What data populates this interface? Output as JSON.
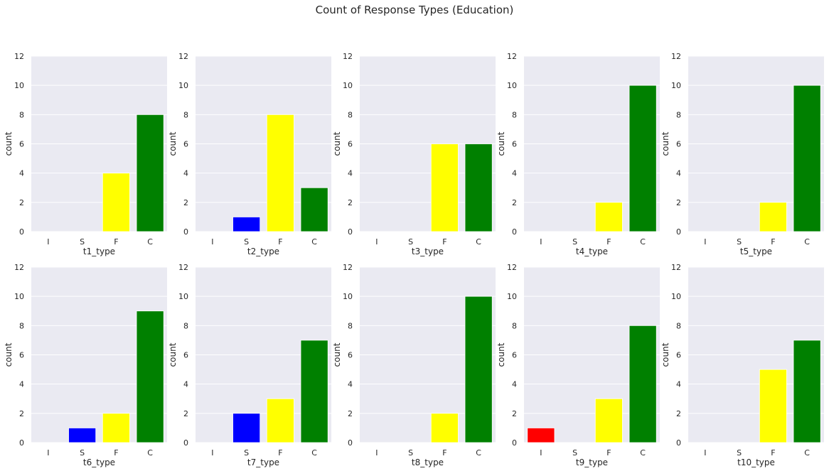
{
  "suptitle": "Count of Response Types (Education)",
  "colors": {
    "I": "#ff0000",
    "S": "#0000ff",
    "F": "#ffff00",
    "C": "#008000",
    "background": "#eaeaf2",
    "grid": "#ffffff",
    "text": "#262626"
  },
  "chart_data": [
    {
      "type": "bar",
      "categories": [
        "I",
        "S",
        "F",
        "C"
      ],
      "values": [
        0,
        0,
        4,
        8
      ],
      "xlabel": "t1_type",
      "ylabel": "count",
      "ylim": [
        0,
        12
      ],
      "yticks": [
        0,
        2,
        4,
        6,
        8,
        10,
        12
      ],
      "grid": true
    },
    {
      "type": "bar",
      "categories": [
        "I",
        "S",
        "F",
        "C"
      ],
      "values": [
        0,
        1,
        8,
        3
      ],
      "xlabel": "t2_type",
      "ylabel": "count",
      "ylim": [
        0,
        12
      ],
      "yticks": [
        0,
        2,
        4,
        6,
        8,
        10,
        12
      ],
      "grid": true
    },
    {
      "type": "bar",
      "categories": [
        "I",
        "S",
        "F",
        "C"
      ],
      "values": [
        0,
        0,
        6,
        6
      ],
      "xlabel": "t3_type",
      "ylabel": "count",
      "ylim": [
        0,
        12
      ],
      "yticks": [
        0,
        2,
        4,
        6,
        8,
        10,
        12
      ],
      "grid": true
    },
    {
      "type": "bar",
      "categories": [
        "I",
        "S",
        "F",
        "C"
      ],
      "values": [
        0,
        0,
        2,
        10
      ],
      "xlabel": "t4_type",
      "ylabel": "count",
      "ylim": [
        0,
        12
      ],
      "yticks": [
        0,
        2,
        4,
        6,
        8,
        10,
        12
      ],
      "grid": true
    },
    {
      "type": "bar",
      "categories": [
        "I",
        "S",
        "F",
        "C"
      ],
      "values": [
        0,
        0,
        2,
        10
      ],
      "xlabel": "t5_type",
      "ylabel": "count",
      "ylim": [
        0,
        12
      ],
      "yticks": [
        0,
        2,
        4,
        6,
        8,
        10,
        12
      ],
      "grid": true
    },
    {
      "type": "bar",
      "categories": [
        "I",
        "S",
        "F",
        "C"
      ],
      "values": [
        0,
        1,
        2,
        9
      ],
      "xlabel": "t6_type",
      "ylabel": "count",
      "ylim": [
        0,
        12
      ],
      "yticks": [
        0,
        2,
        4,
        6,
        8,
        10,
        12
      ],
      "grid": true
    },
    {
      "type": "bar",
      "categories": [
        "I",
        "S",
        "F",
        "C"
      ],
      "values": [
        0,
        2,
        3,
        7
      ],
      "xlabel": "t7_type",
      "ylabel": "count",
      "ylim": [
        0,
        12
      ],
      "yticks": [
        0,
        2,
        4,
        6,
        8,
        10,
        12
      ],
      "grid": true
    },
    {
      "type": "bar",
      "categories": [
        "I",
        "S",
        "F",
        "C"
      ],
      "values": [
        0,
        0,
        2,
        10
      ],
      "xlabel": "t8_type",
      "ylabel": "count",
      "ylim": [
        0,
        12
      ],
      "yticks": [
        0,
        2,
        4,
        6,
        8,
        10,
        12
      ],
      "grid": true
    },
    {
      "type": "bar",
      "categories": [
        "I",
        "S",
        "F",
        "C"
      ],
      "values": [
        1,
        0,
        3,
        8
      ],
      "xlabel": "t9_type",
      "ylabel": "count",
      "ylim": [
        0,
        12
      ],
      "yticks": [
        0,
        2,
        4,
        6,
        8,
        10,
        12
      ],
      "grid": true
    },
    {
      "type": "bar",
      "categories": [
        "I",
        "S",
        "F",
        "C"
      ],
      "values": [
        0,
        0,
        5,
        7
      ],
      "xlabel": "t10_type",
      "ylabel": "count",
      "ylim": [
        0,
        12
      ],
      "yticks": [
        0,
        2,
        4,
        6,
        8,
        10,
        12
      ],
      "grid": true
    }
  ]
}
